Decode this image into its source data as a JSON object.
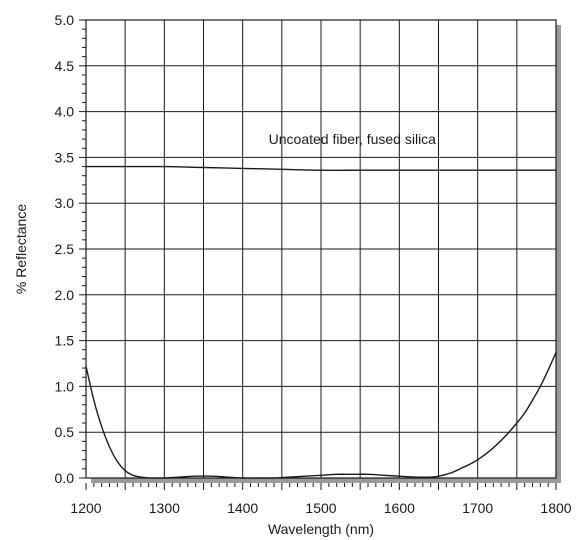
{
  "chart_data": {
    "type": "line",
    "title": "",
    "xlabel": "Wavelength (nm)",
    "ylabel": "% Reflectance",
    "xlim": [
      1200,
      1800
    ],
    "ylim": [
      0,
      5.0
    ],
    "x_ticks": [
      "1200",
      "1300",
      "1400",
      "1500",
      "1600",
      "1700",
      "1800"
    ],
    "y_ticks": [
      "0.0",
      "0.5",
      "1.0",
      "1.5",
      "2.0",
      "2.5",
      "3.0",
      "3.5",
      "4.0",
      "4.5",
      "5.0"
    ],
    "grid": true,
    "annotations": [
      {
        "text": "Uncoated fiber, fused silica",
        "x": 1540,
        "y": 3.7
      }
    ],
    "series": [
      {
        "color": "#1a1a1a",
        "x": [
          1200,
          1250,
          1300,
          1350,
          1400,
          1450,
          1500,
          1550,
          1600,
          1650,
          1700,
          1750,
          1800
        ],
        "y": [
          3.4,
          3.4,
          3.4,
          3.39,
          3.38,
          3.37,
          3.36,
          3.36,
          3.36,
          3.36,
          3.36,
          3.36,
          3.36
        ]
      },
      {
        "color": "#1a1a1a",
        "x": [
          1200,
          1210,
          1220,
          1230,
          1240,
          1250,
          1260,
          1270,
          1280,
          1290,
          1300,
          1320,
          1340,
          1360,
          1380,
          1400,
          1420,
          1440,
          1460,
          1480,
          1500,
          1520,
          1540,
          1560,
          1580,
          1600,
          1620,
          1640,
          1650,
          1660,
          1670,
          1680,
          1690,
          1700,
          1710,
          1720,
          1730,
          1740,
          1750,
          1760,
          1770,
          1780,
          1790,
          1800
        ],
        "y": [
          1.22,
          0.85,
          0.56,
          0.34,
          0.18,
          0.08,
          0.03,
          0.01,
          0.0,
          0.0,
          0.0,
          0.01,
          0.02,
          0.02,
          0.01,
          0.0,
          0.0,
          0.0,
          0.01,
          0.02,
          0.03,
          0.04,
          0.04,
          0.04,
          0.03,
          0.02,
          0.01,
          0.01,
          0.02,
          0.04,
          0.07,
          0.11,
          0.15,
          0.2,
          0.26,
          0.33,
          0.41,
          0.5,
          0.6,
          0.71,
          0.85,
          1.0,
          1.18,
          1.37
        ]
      }
    ]
  }
}
